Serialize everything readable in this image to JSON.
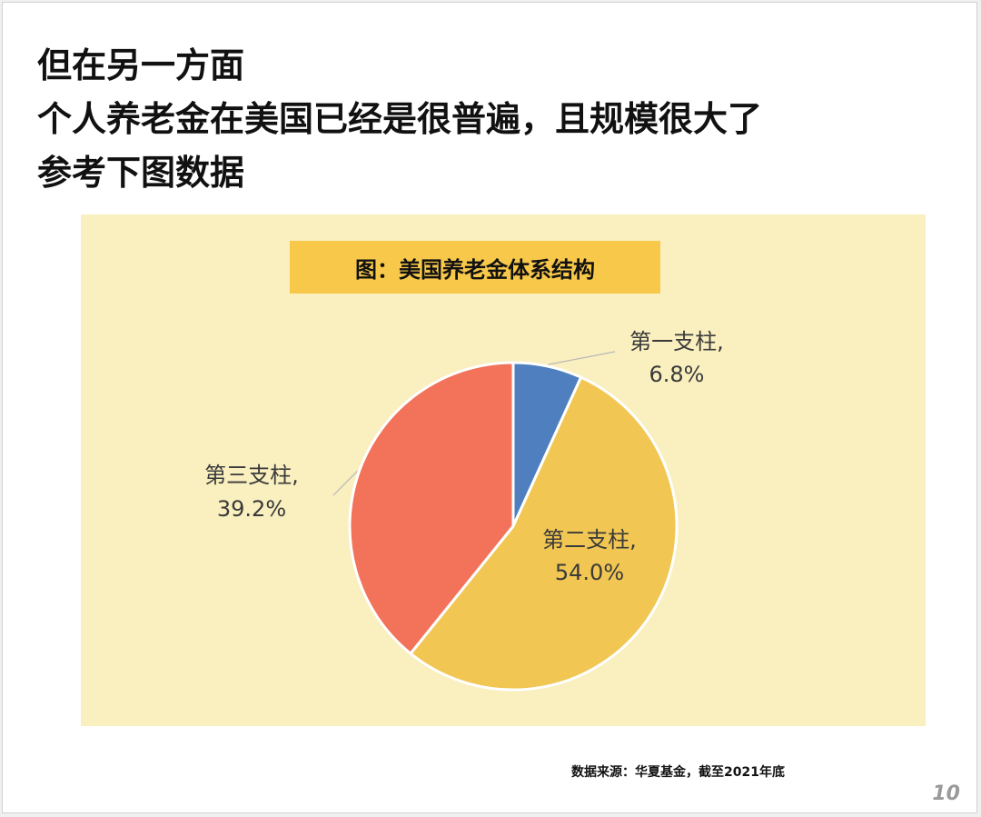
{
  "heading": {
    "line1": "但在另一方面",
    "line2": "个人养老金在美国已经是很普遍，且规模很大了",
    "line3": "参考下图数据"
  },
  "chart_data": {
    "type": "pie",
    "title": "图：美国养老金体系结构",
    "slices": [
      {
        "name": "第一支柱",
        "value": 6.8,
        "label_name": "第一支柱,",
        "label_value": "6.8%",
        "color": "#4f7fbf"
      },
      {
        "name": "第二支柱",
        "value": 54.0,
        "label_name": "第二支柱,",
        "label_value": "54.0%",
        "color": "#f1c652"
      },
      {
        "name": "第三支柱",
        "value": 39.2,
        "label_name": "第三支柱,",
        "label_value": "39.2%",
        "color": "#f2725a"
      }
    ],
    "start": "12 o'clock",
    "direction": "clockwise",
    "background_color": "#f9efbf",
    "title_box_color": "#f7c84a"
  },
  "source_note": "数据来源：华夏基金，截至2021年底",
  "page_number": "10"
}
